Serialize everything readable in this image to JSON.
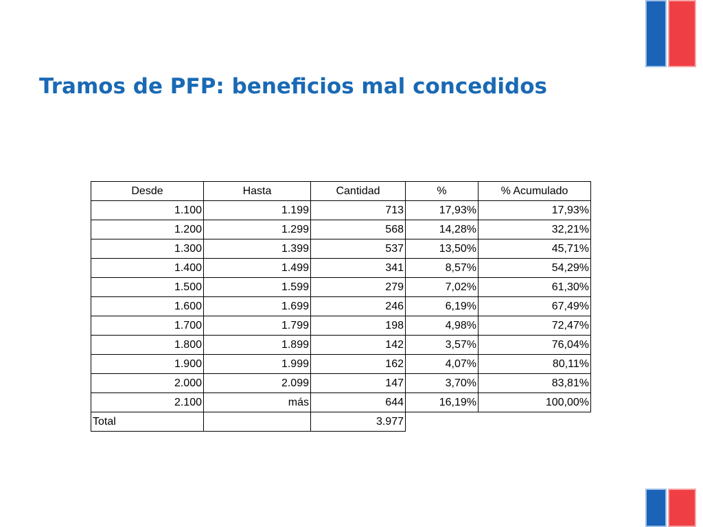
{
  "title": "Tramos de PFP: beneficios mal concedidos",
  "colors": {
    "title": "#1a69b4",
    "flag_blue": "#1a63b7",
    "flag_red": "#ef3f45"
  },
  "table": {
    "headers": [
      "Desde",
      "Hasta",
      "Cantidad",
      "%",
      "% Acumulado"
    ],
    "rows": [
      [
        "1.100",
        "1.199",
        "713",
        "17,93%",
        "17,93%"
      ],
      [
        "1.200",
        "1.299",
        "568",
        "14,28%",
        "32,21%"
      ],
      [
        "1.300",
        "1.399",
        "537",
        "13,50%",
        "45,71%"
      ],
      [
        "1.400",
        "1.499",
        "341",
        "8,57%",
        "54,29%"
      ],
      [
        "1.500",
        "1.599",
        "279",
        "7,02%",
        "61,30%"
      ],
      [
        "1.600",
        "1.699",
        "246",
        "6,19%",
        "67,49%"
      ],
      [
        "1.700",
        "1.799",
        "198",
        "4,98%",
        "72,47%"
      ],
      [
        "1.800",
        "1.899",
        "142",
        "3,57%",
        "76,04%"
      ],
      [
        "1.900",
        "1.999",
        "162",
        "4,07%",
        "80,11%"
      ],
      [
        "2.000",
        "2.099",
        "147",
        "3,70%",
        "83,81%"
      ],
      [
        "2.100",
        "más",
        "644",
        "16,19%",
        "100,00%"
      ]
    ],
    "total": {
      "label": "Total",
      "value": "3.977"
    }
  }
}
